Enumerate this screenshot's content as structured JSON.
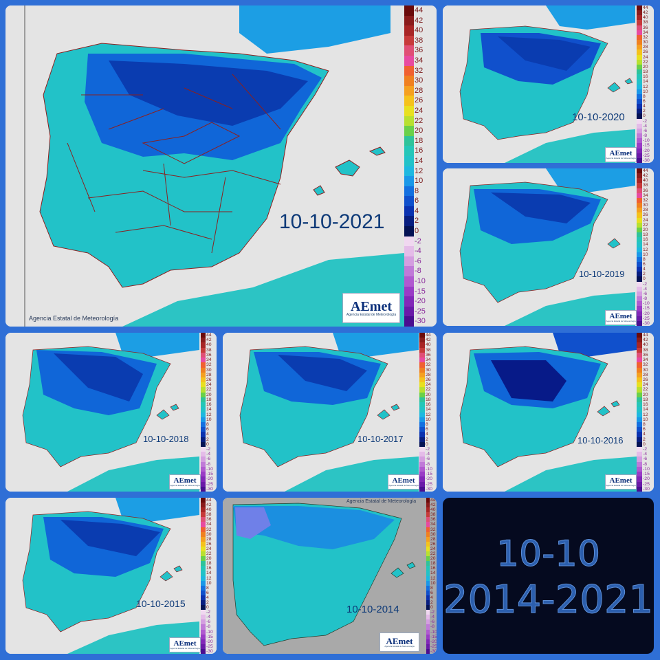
{
  "legend_labels": [
    "44",
    "42",
    "40",
    "38",
    "36",
    "34",
    "32",
    "30",
    "28",
    "26",
    "24",
    "22",
    "20",
    "18",
    "16",
    "14",
    "12",
    "10",
    "8",
    "6",
    "4",
    "2",
    "0",
    "-2",
    "-4",
    "-6",
    "-8",
    "-10",
    "-15",
    "-20",
    "-25",
    "-30"
  ],
  "legend_colors": [
    "#6a0a0a",
    "#8a1b1b",
    "#a82525",
    "#c73a3a",
    "#e04f75",
    "#e84aa0",
    "#f06030",
    "#f08020",
    "#f5a020",
    "#f5c21c",
    "#e8e020",
    "#b8e030",
    "#6ad04a",
    "#2fc39a",
    "#25c6b8",
    "#22c2c8",
    "#1eb8e0",
    "#1a98e8",
    "#1470e0",
    "#1050cc",
    "#0b32b0",
    "#081e80",
    "#041254",
    "#f0d8f0",
    "#e4bce8",
    "#d49ee0",
    "#c07ad8",
    "#b05ad0",
    "#9a3cc6",
    "#8228b8",
    "#6a1aa8",
    "#4a0e90"
  ],
  "panels": [
    {
      "date": "10-10-2021",
      "credit": "Agencia Estatal de Meteorología",
      "logo": "AEmet",
      "logo_sub": "Agencia Estatal de Meteorología"
    },
    {
      "date": "10-10-2020",
      "logo": "AEmet",
      "logo_sub": "Agencia Estatal de Meteorología"
    },
    {
      "date": "10-10-2019",
      "logo": "AEmet",
      "logo_sub": "Agencia Estatal de Meteorología"
    },
    {
      "date": "10-10-2018",
      "logo": "AEmet",
      "logo_sub": "Agencia Estatal de Meteorología"
    },
    {
      "date": "10-10-2017",
      "logo": "AEmet",
      "logo_sub": "Agencia Estatal de Meteorología"
    },
    {
      "date": "10-10-2016",
      "logo": "AEmet",
      "logo_sub": "Agencia Estatal de Meteorología"
    },
    {
      "date": "10-10-2015",
      "logo": "AEmet",
      "logo_sub": "Agencia Estatal de Meteorología"
    },
    {
      "date": "10-10-2014",
      "credit": "Agencia Estatal de Meteorología",
      "logo": "AEmet",
      "logo_sub": "Agencia Estatal de Meteorología"
    }
  ],
  "title": {
    "line1": "10-10",
    "line2": "2014-2021"
  }
}
